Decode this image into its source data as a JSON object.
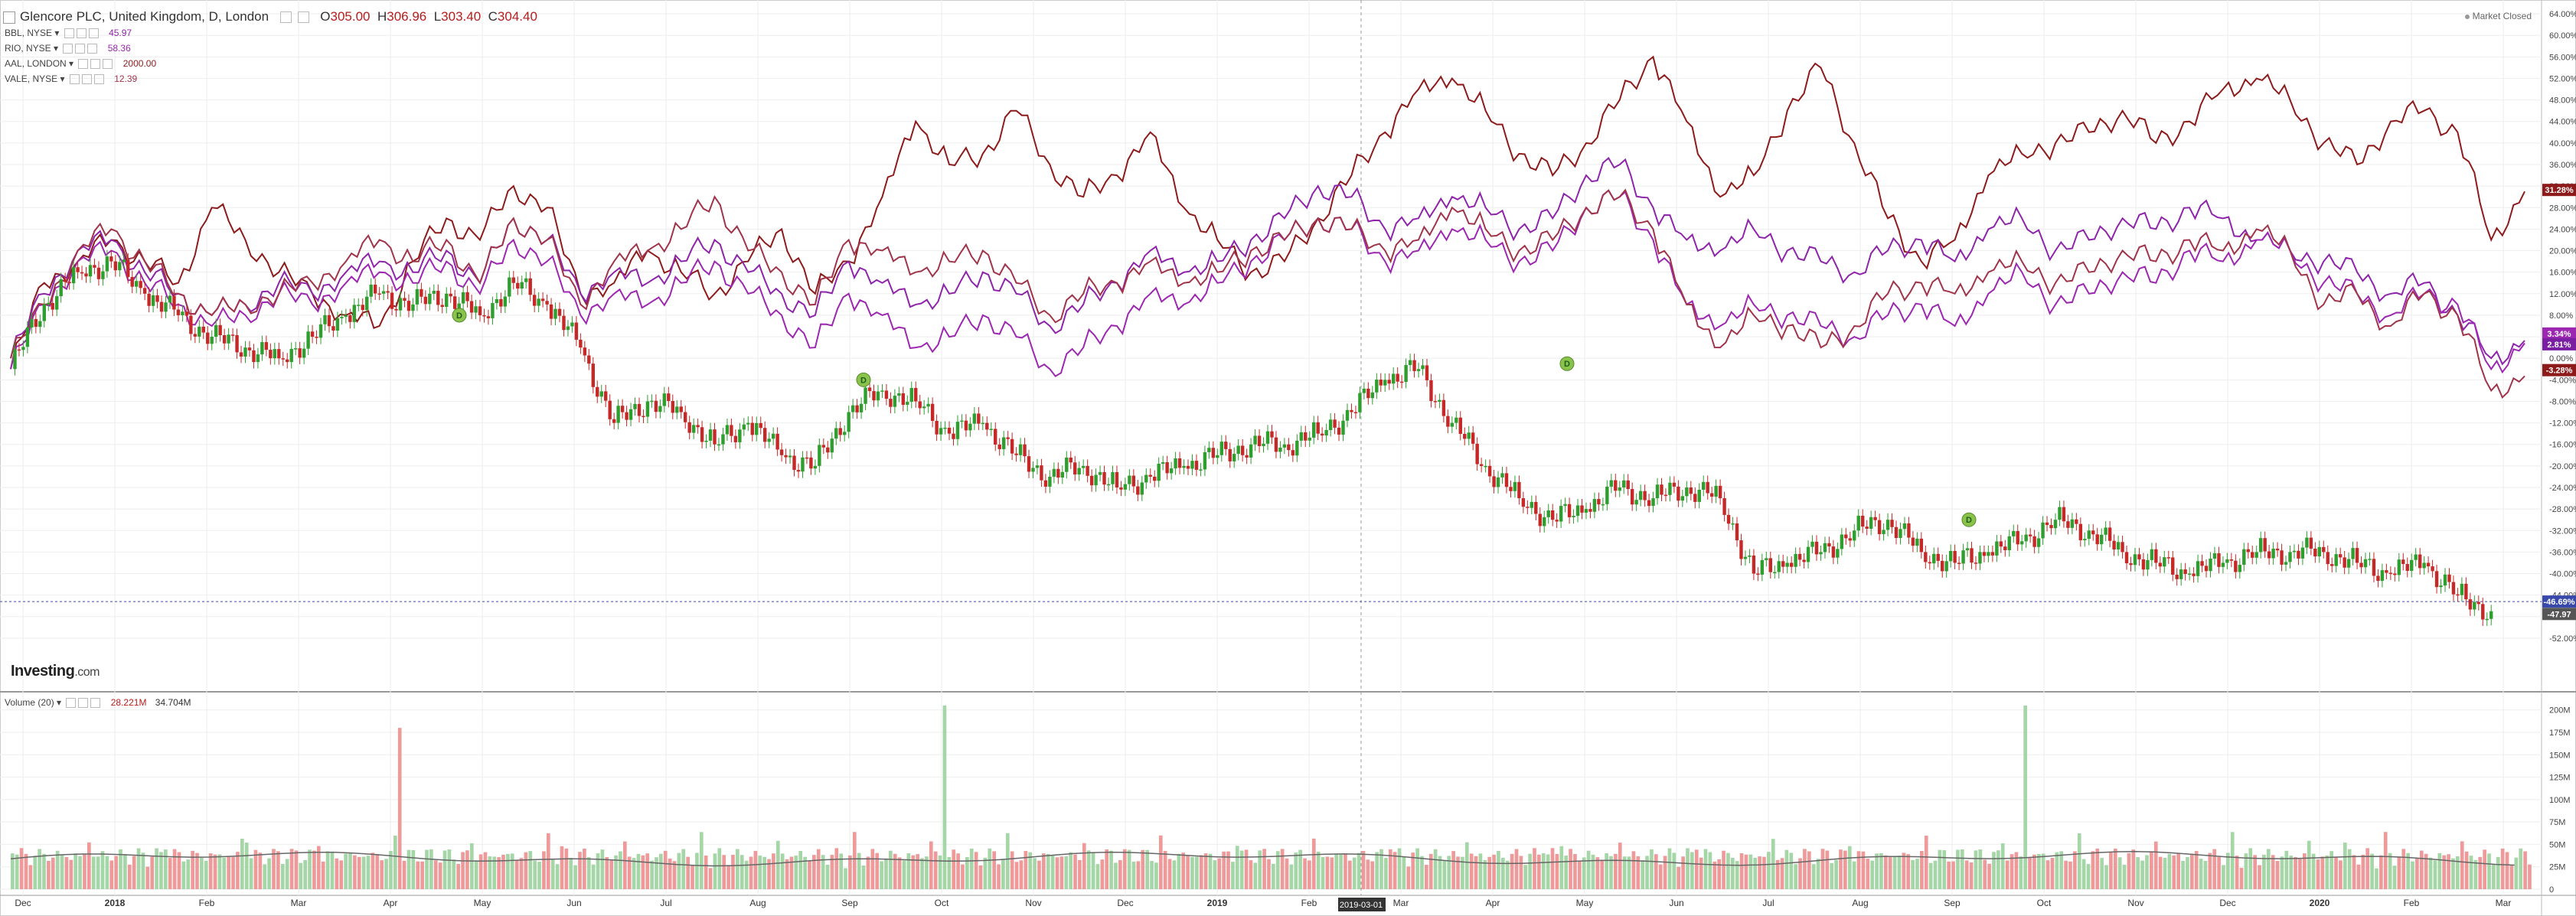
{
  "header": {
    "title": "Glencore PLC, United Kingdom, D, London",
    "open_label": "O",
    "open": "305.00",
    "high_label": "H",
    "high": "306.96",
    "low_label": "L",
    "low": "303.40",
    "close_label": "C",
    "close": "304.40"
  },
  "compare": [
    {
      "name": "BBL, NYSE",
      "value": "45.97",
      "color": "#8e24aa"
    },
    {
      "name": "RIO, NYSE",
      "value": "58.36",
      "color": "#9c27b0"
    },
    {
      "name": "AAL, LONDON",
      "value": "2000.00",
      "color": "#8d1b1b"
    },
    {
      "name": "VALE, NYSE",
      "value": "12.39",
      "color": "#a0344a"
    }
  ],
  "market_status": "Market Closed",
  "logo": {
    "name": "Investing",
    "domain": ".com"
  },
  "volume": {
    "label": "Volume (20)",
    "value": "28.221M",
    "ma_value": "34.704M"
  },
  "crosshair_date": "2019-03-01",
  "badges": {
    "aal": "31.28%",
    "rio": "3.34%",
    "bbl": "2.81%",
    "vale": "-3.28%",
    "glen_a": "-46.69%",
    "glen_b": "-47.97"
  },
  "dividend_marker": "D",
  "colors": {
    "up": "#2e9e2e",
    "down": "#c62828",
    "vol_up": "#a5d6a7",
    "vol_down": "#ef9a9a",
    "grid": "#eeeeee"
  },
  "chart_data": {
    "type": "line",
    "x_ticks": [
      "Dec",
      "2018",
      "Feb",
      "Mar",
      "Apr",
      "May",
      "Jun",
      "Jul",
      "Aug",
      "Sep",
      "Oct",
      "Nov",
      "Dec",
      "2019",
      "Feb",
      "Mar",
      "Apr",
      "May",
      "Jun",
      "Jul",
      "Aug",
      "Sep",
      "Oct",
      "Nov",
      "Dec",
      "2020",
      "Feb",
      "Mar"
    ],
    "y_ticks": [
      "64.00%",
      "60.00%",
      "56.00%",
      "52.00%",
      "48.00%",
      "44.00%",
      "40.00%",
      "36.00%",
      "32.00%",
      "28.00%",
      "24.00%",
      "20.00%",
      "16.00%",
      "12.00%",
      "8.00%",
      "4.00%",
      "0.00%",
      "-4.00%",
      "-8.00%",
      "-12.00%",
      "-16.00%",
      "-20.00%",
      "-24.00%",
      "-28.00%",
      "-32.00%",
      "-36.00%",
      "-40.00%",
      "-44.00%",
      "-48.00%",
      "-52.00%"
    ],
    "ylim": [
      -54,
      66
    ],
    "volume_ticks": [
      "200M",
      "175M",
      "150M",
      "125M",
      "100M",
      "75M",
      "50M",
      "25M",
      "0"
    ],
    "volume_ylim": [
      0,
      210
    ],
    "series": [
      {
        "name": "AAL, LONDON",
        "color": "#8d1b1b",
        "values": [
          -2,
          14,
          18,
          22,
          18,
          14,
          28,
          22,
          16,
          12,
          8,
          6,
          18,
          26,
          22,
          32,
          28,
          12,
          14,
          20,
          16,
          12,
          18,
          24,
          12,
          18,
          30,
          44,
          36,
          38,
          46,
          36,
          30,
          34,
          42,
          28,
          22,
          16,
          18,
          26,
          34,
          42,
          50,
          52,
          46,
          38,
          34,
          40,
          48,
          56,
          44,
          30,
          34,
          46,
          54,
          40,
          26,
          18,
          22,
          34,
          38,
          40,
          42,
          46,
          40,
          44,
          50,
          52,
          48,
          40,
          36,
          44,
          46,
          42,
          22,
          31
        ]
      },
      {
        "name": "RIO, NYSE",
        "color": "#8e24aa",
        "values": [
          0,
          12,
          20,
          22,
          16,
          12,
          8,
          10,
          14,
          12,
          16,
          18,
          16,
          20,
          14,
          26,
          22,
          12,
          16,
          14,
          18,
          22,
          16,
          12,
          8,
          18,
          14,
          10,
          12,
          16,
          12,
          6,
          10,
          14,
          20,
          16,
          18,
          22,
          26,
          32,
          30,
          24,
          26,
          30,
          28,
          24,
          26,
          34,
          36,
          28,
          22,
          20,
          24,
          20,
          18,
          16,
          20,
          22,
          18,
          24,
          26,
          20,
          22,
          26,
          24,
          28,
          26,
          22,
          20,
          18,
          16,
          12,
          14,
          8,
          0,
          3.3
        ]
      },
      {
        "name": "BBL, NYSE",
        "color": "#9c27b0",
        "values": [
          -2,
          10,
          18,
          20,
          14,
          10,
          6,
          8,
          12,
          10,
          14,
          16,
          14,
          18,
          12,
          22,
          18,
          8,
          12,
          10,
          14,
          18,
          12,
          8,
          2,
          12,
          8,
          2,
          4,
          8,
          4,
          -2,
          2,
          6,
          12,
          10,
          14,
          18,
          22,
          26,
          24,
          18,
          20,
          24,
          22,
          18,
          20,
          28,
          30,
          22,
          10,
          6,
          10,
          8,
          6,
          4,
          8,
          10,
          6,
          12,
          16,
          10,
          12,
          16,
          14,
          20,
          18,
          22,
          20,
          14,
          12,
          8,
          12,
          10,
          -2,
          2.8
        ]
      },
      {
        "name": "VALE, NYSE",
        "color": "#a0344a",
        "values": [
          0,
          10,
          20,
          24,
          18,
          12,
          8,
          10,
          12,
          14,
          18,
          22,
          18,
          22,
          14,
          26,
          22,
          10,
          18,
          20,
          24,
          30,
          20,
          16,
          10,
          22,
          20,
          16,
          18,
          20,
          14,
          8,
          12,
          14,
          18,
          14,
          16,
          20,
          22,
          26,
          24,
          20,
          22,
          28,
          24,
          20,
          22,
          28,
          30,
          24,
          10,
          2,
          8,
          6,
          2,
          6,
          12,
          14,
          12,
          16,
          18,
          14,
          16,
          20,
          18,
          22,
          20,
          24,
          20,
          10,
          12,
          6,
          12,
          8,
          -6,
          -3.3
        ]
      },
      {
        "name": "Glencore PLC, United Kingdom, D, London",
        "color": "#333333",
        "values": [
          -2,
          10,
          16,
          18,
          12,
          8,
          4,
          2,
          0,
          4,
          8,
          12,
          10,
          12,
          8,
          14,
          10,
          2,
          -12,
          -8,
          -10,
          -16,
          -12,
          -18,
          -20,
          -10,
          -6,
          -8,
          -14,
          -12,
          -18,
          -22,
          -20,
          -24,
          -22,
          -20,
          -18,
          -16,
          -16,
          -14,
          -10,
          -4,
          -2,
          -12,
          -20,
          -26,
          -30,
          -28,
          -24,
          -26,
          -24,
          -26,
          -40,
          -38,
          -36,
          -32,
          -30,
          -36,
          -38,
          -36,
          -34,
          -30,
          -32,
          -36,
          -38,
          -40,
          -38,
          -36,
          -36,
          -36,
          -38,
          -40,
          -38,
          -44,
          -47
        ]
      }
    ]
  }
}
